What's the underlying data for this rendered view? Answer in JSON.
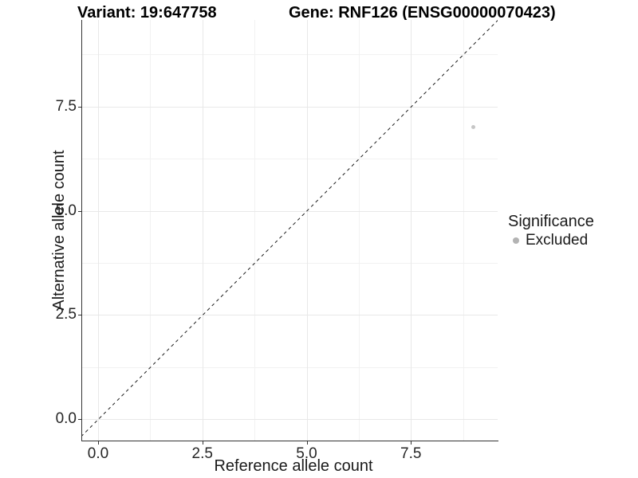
{
  "header": {
    "variant_title": "Variant: 19:647758",
    "gene_title": "Gene: RNF126 (ENSG00000070423)"
  },
  "chart_data": {
    "type": "scatter",
    "xlabel": "Reference allele count",
    "ylabel": "Alternative allele count",
    "x_ticks": {
      "labels": [
        "0.0",
        "2.5",
        "5.0",
        "7.5"
      ],
      "values": [
        0,
        2.5,
        5,
        7.5
      ]
    },
    "y_ticks": {
      "labels": [
        "0.0",
        "2.5",
        "5.0",
        "7.5"
      ],
      "values": [
        0,
        2.5,
        5,
        7.5
      ]
    },
    "x_minor": [
      1.25,
      3.75,
      6.25,
      8.75
    ],
    "y_minor": [
      1.25,
      3.75,
      6.25,
      8.75
    ],
    "xlim": [
      -0.4,
      9.6
    ],
    "ylim": [
      -0.5,
      9.6
    ],
    "grid": {
      "major": true,
      "minor": true
    },
    "points": [
      {
        "x": 9,
        "y": 7,
        "series": "Excluded"
      }
    ],
    "reference_line": {
      "slope": 1,
      "intercept": 0,
      "style": "dashed",
      "color": "#1a1a1a"
    },
    "legend": {
      "title": "Significance",
      "position": "right",
      "entries": [
        {
          "label": "Excluded",
          "color": "#b3b3b3"
        }
      ]
    },
    "colors": {
      "background": "#ffffff",
      "grid_major": "#e8e8e8",
      "grid_minor": "#f2f2f2",
      "axis": "#333333",
      "point": "#c6c6c6"
    }
  }
}
